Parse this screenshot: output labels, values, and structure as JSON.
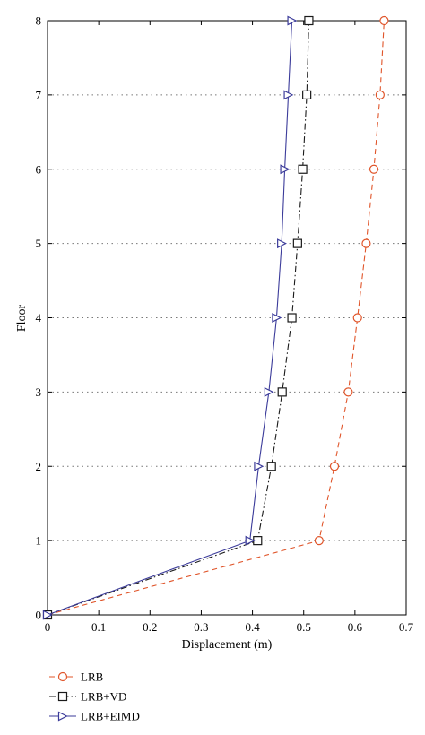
{
  "chart_data": {
    "type": "line",
    "xlabel": "Displacement (m)",
    "ylabel": "Floor",
    "xlim": [
      0,
      0.7
    ],
    "ylim": [
      0,
      8
    ],
    "x_ticks": [
      "0",
      "0.1",
      "0.2",
      "0.3",
      "0.4",
      "0.5",
      "0.6",
      "0.7"
    ],
    "y_ticks": [
      "0",
      "1",
      "2",
      "3",
      "4",
      "5",
      "6",
      "7",
      "8"
    ],
    "grid": "horizontal dotted",
    "legend_position": "below plot",
    "floors": [
      0,
      1,
      2,
      3,
      4,
      5,
      6,
      7,
      8
    ],
    "series": [
      {
        "name": "LRB",
        "color": "#e0552a",
        "line_style": "dashed",
        "marker": "circle",
        "values": [
          0,
          0.53,
          0.56,
          0.587,
          0.605,
          0.622,
          0.637,
          0.649,
          0.657
        ]
      },
      {
        "name": "LRB+VD",
        "color": "#1a1a1a",
        "line_style": "dash-dot",
        "marker": "square",
        "values": [
          0,
          0.41,
          0.437,
          0.458,
          0.477,
          0.488,
          0.498,
          0.506,
          0.51
        ]
      },
      {
        "name": "LRB+EIMD",
        "color": "#3b3b9a",
        "line_style": "solid",
        "marker": "triangle-right",
        "values": [
          0,
          0.395,
          0.412,
          0.432,
          0.447,
          0.457,
          0.463,
          0.47,
          0.477
        ]
      }
    ]
  }
}
